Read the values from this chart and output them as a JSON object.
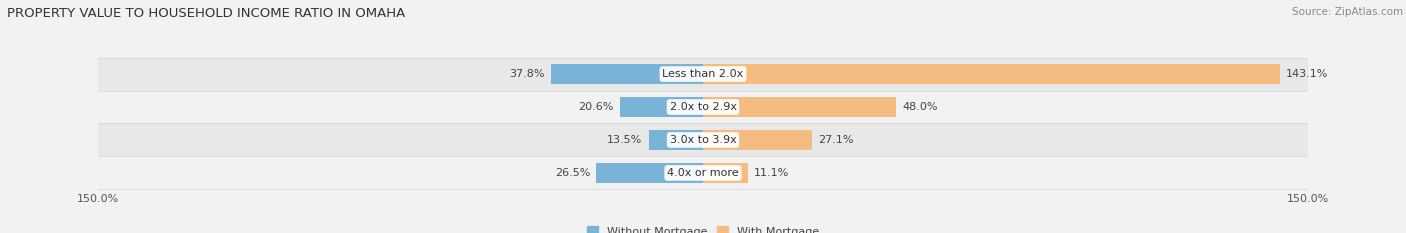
{
  "title": "PROPERTY VALUE TO HOUSEHOLD INCOME RATIO IN OMAHA",
  "source": "Source: ZipAtlas.com",
  "categories": [
    "Less than 2.0x",
    "2.0x to 2.9x",
    "3.0x to 3.9x",
    "4.0x or more"
  ],
  "without_mortgage": [
    37.8,
    20.6,
    13.5,
    26.5
  ],
  "with_mortgage": [
    143.1,
    48.0,
    27.1,
    11.1
  ],
  "xlim": [
    -150,
    150
  ],
  "xtick_left": -150.0,
  "xtick_right": 150.0,
  "bar_color_blue": "#7ab3d8",
  "bar_color_orange": "#f5bc81",
  "bg_color": "#f2f2f2",
  "row_colors": [
    "#e8e8e8",
    "#f2f2f2",
    "#e8e8e8",
    "#f2f2f2"
  ],
  "legend_label_blue": "Without Mortgage",
  "legend_label_orange": "With Mortgage",
  "title_fontsize": 9.5,
  "label_fontsize": 8.0,
  "axis_fontsize": 8.0,
  "figsize": [
    14.06,
    2.33
  ],
  "dpi": 100
}
